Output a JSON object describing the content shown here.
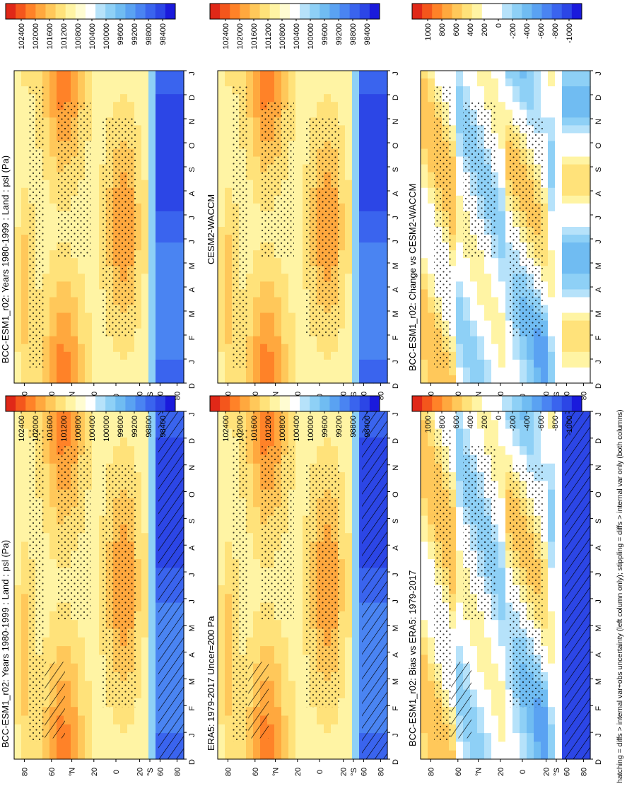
{
  "figure_caption": "hatching = diffs > internal var+obs uncertainty (left column only); stippling = diffs > internal var only (both columns)",
  "months": [
    "D",
    "J",
    "F",
    "M",
    "A",
    "M",
    "J",
    "J",
    "A",
    "S",
    "O",
    "N",
    "D",
    "J"
  ],
  "lat_ticks": [
    "80",
    "60",
    "°N",
    "20",
    "0",
    "20",
    "°S",
    "60",
    "80"
  ],
  "colors": {
    "abs": [
      "#1a1adc",
      "#2c46e6",
      "#3a64ee",
      "#4a84f2",
      "#5aa2f2",
      "#70bcf2",
      "#8ed0f6",
      "#b6e2fa",
      "#ffffff",
      "#fffcd2",
      "#fff4a4",
      "#ffe27a",
      "#ffc85a",
      "#ffa83e",
      "#ff8228",
      "#f4561c",
      "#e02818"
    ],
    "diff": [
      "#1a1adc",
      "#2c46e6",
      "#3a64ee",
      "#4a84f2",
      "#5aa2f2",
      "#70bcf2",
      "#8ed0f6",
      "#b6e2fa",
      "#ffffff",
      "#ffffff",
      "#fff4a4",
      "#ffe27a",
      "#ffc85a",
      "#ffa83e",
      "#ff8228",
      "#f4561c",
      "#e02818"
    ]
  },
  "colorbars": {
    "abs_labels": [
      "102400",
      "102000",
      "101600",
      "101200",
      "100800",
      "100400",
      "100000",
      "99600",
      "99200",
      "98800",
      "98400"
    ],
    "diff_labels": [
      "1000",
      "800",
      "600",
      "400",
      "200",
      "0",
      "-200",
      "-400",
      "-600",
      "-800",
      "-1000"
    ]
  },
  "chart_data": [
    {
      "id": "left-top",
      "type": "heatmap",
      "title": "BCC-ESM1_r02: Years 1980-1999 : Land : psl (Pa)",
      "x": "month",
      "y": "latitude",
      "units": "Pa",
      "range": [
        98400,
        102400
      ],
      "hatching": true,
      "stippling": true
    },
    {
      "id": "right-top",
      "type": "heatmap",
      "title": "BCC-ESM1_r02: Years 1980-1999 : Land : psl (Pa)",
      "x": "month",
      "y": "latitude",
      "units": "Pa",
      "range": [
        98400,
        102400
      ],
      "hatching": false,
      "stippling": true
    },
    {
      "id": "left-middle",
      "type": "heatmap",
      "title": "ERA5: 1979-2017 Uncer=200 Pa",
      "x": "month",
      "y": "latitude",
      "units": "Pa",
      "range": [
        98400,
        102400
      ],
      "hatching": true,
      "stippling": true
    },
    {
      "id": "right-middle",
      "type": "heatmap",
      "title": "CESM2-WACCM",
      "x": "month",
      "y": "latitude",
      "units": "Pa",
      "range": [
        98400,
        102400
      ],
      "hatching": false,
      "stippling": true
    },
    {
      "id": "left-bottom",
      "type": "heatmap",
      "title": "BCC-ESM1_r02: Bias vs ERA5: 1979-2017",
      "x": "month",
      "y": "latitude",
      "units": "Pa",
      "range": [
        -1000,
        1000
      ],
      "hatching": true,
      "stippling": true
    },
    {
      "id": "right-bottom",
      "type": "heatmap",
      "title": "BCC-ESM1_r02: Change vs CESM2-WACCM",
      "x": "month",
      "y": "latitude",
      "units": "Pa",
      "range": [
        -1000,
        1000
      ],
      "hatching": false,
      "stippling": true
    }
  ]
}
